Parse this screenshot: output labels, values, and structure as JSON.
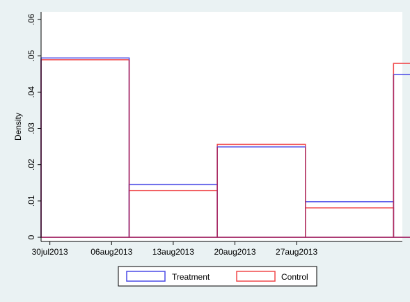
{
  "chart_data": {
    "type": "bar",
    "subtype": "histogram-outline",
    "xlabel": "",
    "ylabel": "Density",
    "ylim": [
      0,
      0.06
    ],
    "y_ticks": [
      0,
      0.01,
      0.02,
      0.03,
      0.04,
      0.05,
      0.06
    ],
    "y_tick_labels": [
      "0",
      ".01",
      ".02",
      ".03",
      ".04",
      ".05",
      ".06"
    ],
    "x_tick_labels": [
      "30jul2013",
      "06aug2013",
      "13aug2013",
      "20aug2013",
      "27aug2013"
    ],
    "x_range": [
      "2013-07-29",
      "2013-09-08"
    ],
    "bin_edges": [
      "2013-07-29",
      "2013-08-08",
      "2013-08-18",
      "2013-08-28",
      "2013-09-07"
    ],
    "bin_edges_full": [
      "2013-07-29",
      "2013-08-08",
      "2013-08-18",
      "2013-08-28",
      "2013-09-07",
      "2013-09-17"
    ],
    "series": [
      {
        "name": "Treatment",
        "color": "#4a4ae6",
        "values": [
          0.0494,
          0.0145,
          0.0249,
          0.0098,
          0.0448
        ]
      },
      {
        "name": "Control",
        "color": "#f0484a",
        "values": [
          0.0489,
          0.0129,
          0.0256,
          0.0081,
          0.0479
        ]
      }
    ],
    "grid": false,
    "legend_placement": "bottom"
  },
  "colors": {
    "background": "#eaf2f3",
    "plot_background": "#ffffff",
    "treatment": "#4a4ae6",
    "control": "#f0484a",
    "axis": "#000000",
    "bar_overlap": "#b0295a"
  }
}
